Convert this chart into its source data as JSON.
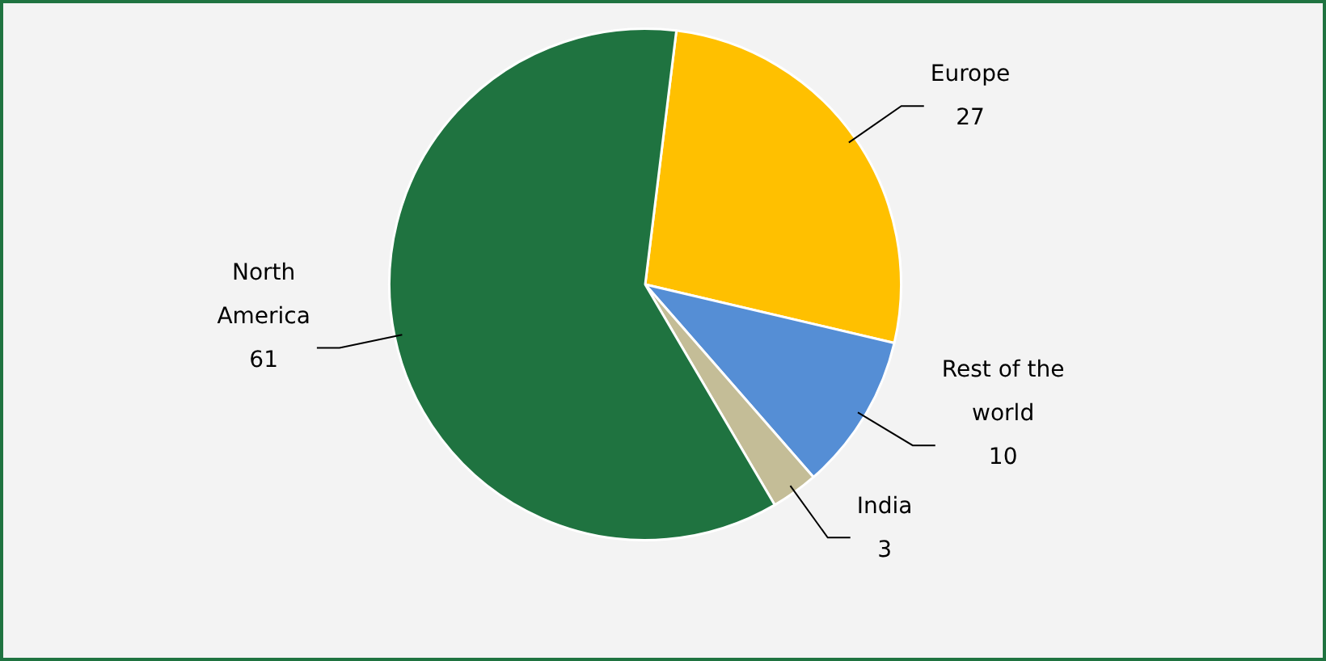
{
  "chart_data": {
    "type": "pie",
    "categories": [
      "Europe",
      "Rest of the world",
      "India",
      "North America"
    ],
    "values": [
      27,
      10,
      3,
      61
    ],
    "colors": [
      "#ffc000",
      "#558ed5",
      "#c4bd97",
      "#1f7340"
    ],
    "data_labels": true,
    "legend": false
  }
}
